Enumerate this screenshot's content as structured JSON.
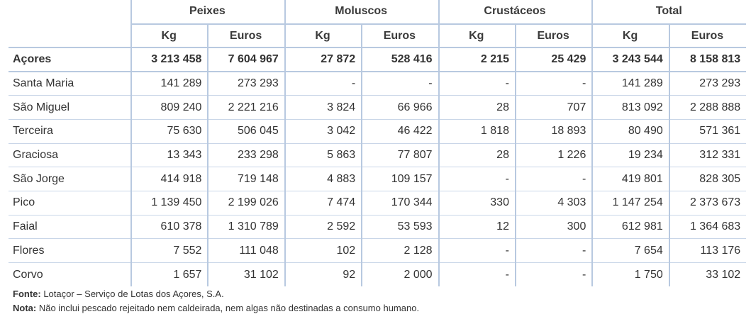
{
  "groups": [
    "Peixes",
    "Moluscos",
    "Crustáceos",
    "Total"
  ],
  "units": [
    "Kg",
    "Euros",
    "Kg",
    "Euros",
    "Kg",
    "Euros",
    "Kg",
    "Euros"
  ],
  "total_row": {
    "name": "Açores",
    "values": [
      "3 213 458",
      "7 604 967",
      "27 872",
      "528 416",
      "2 215",
      "25 429",
      "3 243 544",
      "8 158 813"
    ]
  },
  "rows": [
    {
      "name": "Santa Maria",
      "values": [
        "141 289",
        "273 293",
        "-",
        "-",
        "-",
        "-",
        "141 289",
        "273 293"
      ]
    },
    {
      "name": "São Miguel",
      "values": [
        "809 240",
        "2 221 216",
        "3 824",
        "66 966",
        "28",
        "707",
        "813 092",
        "2 288 888"
      ]
    },
    {
      "name": "Terceira",
      "values": [
        "75 630",
        "506 045",
        "3 042",
        "46 422",
        "1 818",
        "18 893",
        "80 490",
        "571 361"
      ]
    },
    {
      "name": "Graciosa",
      "values": [
        "13 343",
        "233 298",
        "5 863",
        "77 807",
        "28",
        "1 226",
        "19 234",
        "312 331"
      ]
    },
    {
      "name": "São Jorge",
      "values": [
        "414 918",
        "719 148",
        "4 883",
        "109 157",
        "-",
        "-",
        "419 801",
        "828 305"
      ]
    },
    {
      "name": "Pico",
      "values": [
        "1 139 450",
        "2 199 026",
        "7 474",
        "170 344",
        "330",
        "4 303",
        "1 147 254",
        "2 373 673"
      ]
    },
    {
      "name": "Faial",
      "values": [
        "610 378",
        "1 310 789",
        "2 592",
        "53 593",
        "12",
        "300",
        "612 981",
        "1 364 683"
      ]
    },
    {
      "name": "Flores",
      "values": [
        "7 552",
        "111 048",
        "102",
        "2 128",
        "-",
        "-",
        "7 654",
        "113 176"
      ]
    },
    {
      "name": "Corvo",
      "values": [
        "1 657",
        "31 102",
        "92",
        "2 000",
        "-",
        "-",
        "1 750",
        "33 102"
      ]
    }
  ],
  "notes": {
    "source_label": "Fonte:",
    "source_text": " Lotaçor – Serviço de Lotas dos Açores, S.A.",
    "note_label": "Nota:",
    "note_text": " Não inclui pescado rejeitado nem caldeirada, nem algas não destinadas a consumo humano."
  }
}
